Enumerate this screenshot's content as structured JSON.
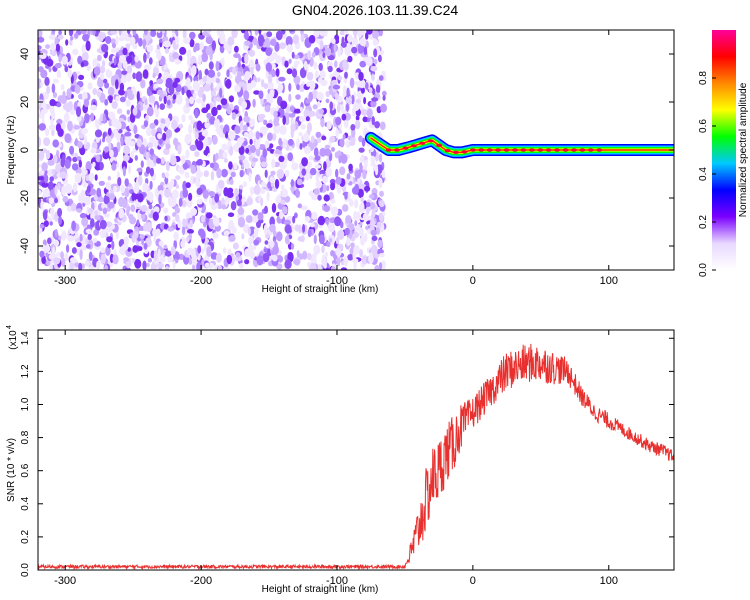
{
  "page": {
    "title": "GN04.2026.103.11.39.C24"
  },
  "chart_data": [
    {
      "type": "heatmap",
      "xlabel": "Height of straight line (km)",
      "ylabel": "Frequency (Hz)",
      "xlim": [
        -320,
        148
      ],
      "ylim": [
        -50,
        50
      ],
      "xticks": [
        -300,
        -200,
        -100,
        0,
        100
      ],
      "yticks": [
        -40,
        -20,
        0,
        20,
        40
      ],
      "noise_region": {
        "x_range": [
          -320,
          -68
        ],
        "y_range": [
          -50,
          50
        ]
      },
      "ridge": {
        "x": [
          -75,
          -70,
          -62,
          -55,
          -48,
          -42,
          -36,
          -30,
          -25,
          -20,
          -14,
          -8,
          0,
          20,
          50,
          80,
          110,
          148
        ],
        "y": [
          5,
          3,
          0,
          0,
          1,
          2,
          3,
          4,
          2,
          0,
          -1,
          -1,
          0,
          0,
          0,
          0,
          0,
          0
        ]
      },
      "colorbar": {
        "label": "Normalized spectral amplitude",
        "range": [
          0,
          1
        ],
        "ticks": [
          0.0,
          0.2,
          0.4,
          0.6,
          0.8
        ],
        "tick_labels": [
          "0.0",
          "0.2",
          "0.4",
          "0.6",
          "0.8"
        ],
        "colors": [
          "#ffffff",
          "#e8d8ff",
          "#7a00ff",
          "#0000ff",
          "#00c8ff",
          "#00ff00",
          "#ffff00",
          "#ff8800",
          "#ff0000",
          "#ff0099"
        ]
      }
    },
    {
      "type": "line",
      "xlabel": "Height of straight line (km)",
      "ylabel": "SNR (10 * v/v)",
      "scale_label": "(x10",
      "scale_exponent": "4",
      "xlim": [
        -320,
        148
      ],
      "ylim": [
        0,
        1.45
      ],
      "xticks": [
        -300,
        -200,
        -100,
        0,
        100
      ],
      "yticks": [
        0.0,
        0.2,
        0.4,
        0.6,
        0.8,
        1.0,
        1.2,
        1.4
      ],
      "ytick_labels": [
        "0.0",
        "0.2",
        "0.4",
        "0.6",
        "0.8",
        "1.0",
        "1.2",
        "1.4"
      ],
      "series": [
        {
          "color": "#e8312f",
          "x": [
            -320,
            -250,
            -200,
            -150,
            -100,
            -60,
            -50,
            -45,
            -40,
            -35,
            -30,
            -25,
            -20,
            -15,
            -10,
            -5,
            0,
            5,
            10,
            15,
            20,
            25,
            30,
            40,
            50,
            60,
            70,
            80,
            90,
            100,
            110,
            120,
            130,
            140,
            148
          ],
          "y": [
            0.02,
            0.02,
            0.02,
            0.02,
            0.02,
            0.02,
            0.02,
            0.12,
            0.25,
            0.4,
            0.55,
            0.6,
            0.7,
            0.75,
            0.85,
            0.9,
            0.95,
            1.0,
            1.05,
            1.1,
            1.15,
            1.2,
            1.22,
            1.25,
            1.25,
            1.22,
            1.2,
            1.05,
            0.95,
            0.9,
            0.85,
            0.8,
            0.75,
            0.72,
            0.68
          ]
        }
      ],
      "noise_amplitude": [
        0.01,
        0.01,
        0.01,
        0.01,
        0.01,
        0.01,
        0.01,
        0.08,
        0.15,
        0.2,
        0.2,
        0.2,
        0.18,
        0.18,
        0.15,
        0.12,
        0.1,
        0.1,
        0.1,
        0.1,
        0.12,
        0.12,
        0.12,
        0.12,
        0.12,
        0.1,
        0.08,
        0.06,
        0.05,
        0.05,
        0.04,
        0.04,
        0.04,
        0.04,
        0.04
      ]
    }
  ]
}
